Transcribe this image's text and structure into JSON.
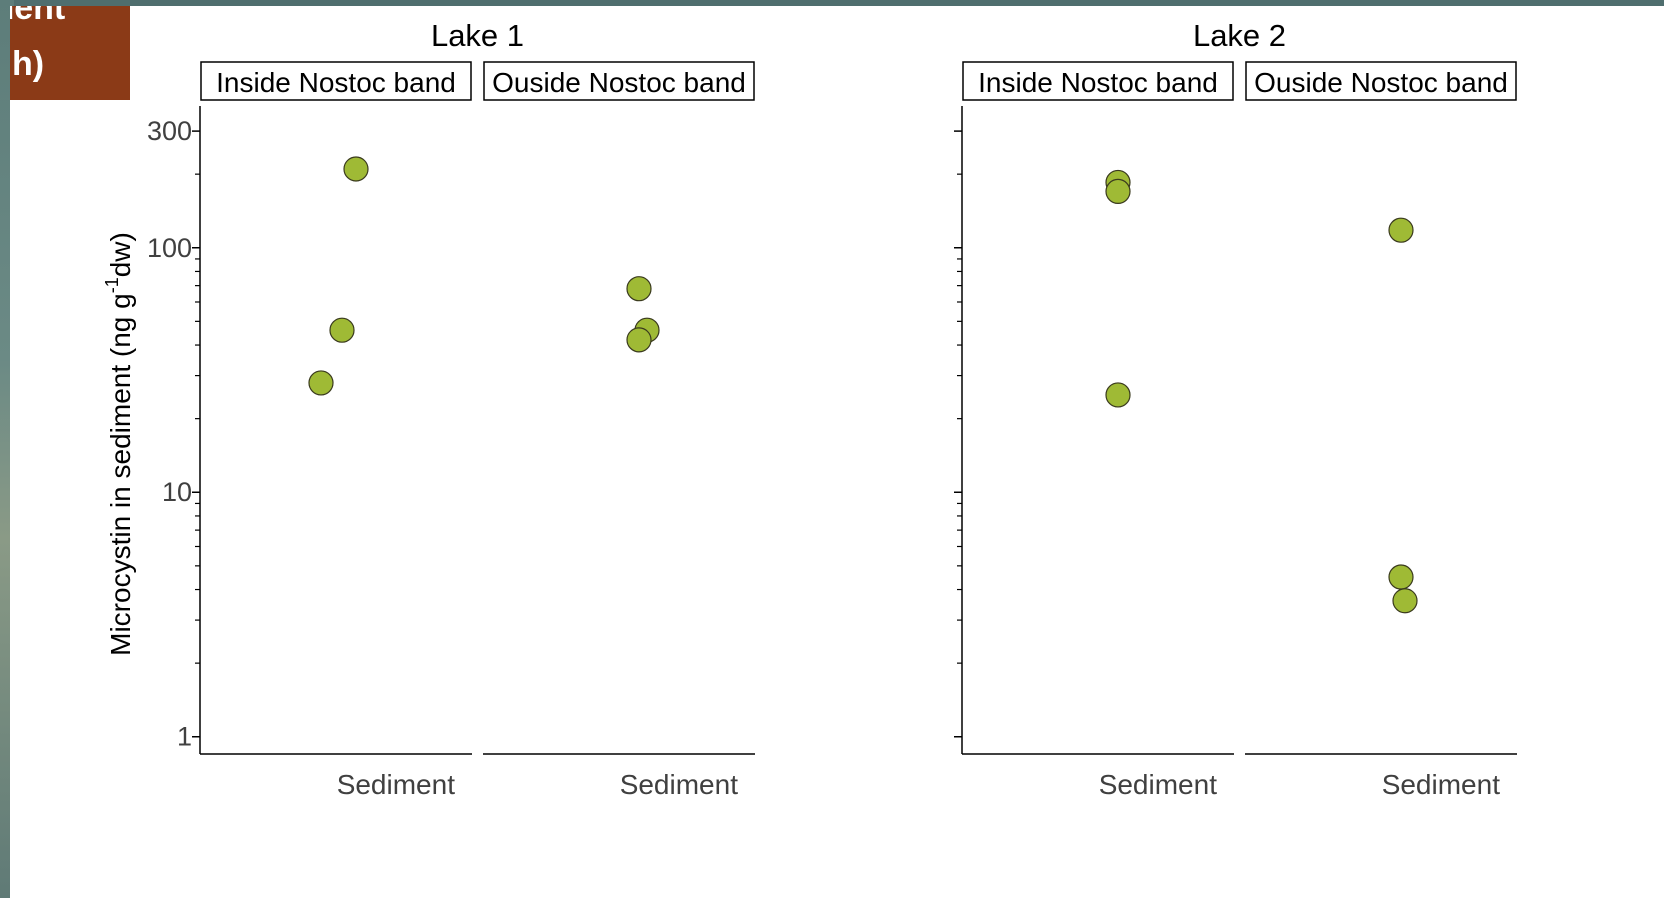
{
  "banner": {
    "line1": "ment",
    "line2": "h)"
  },
  "chart_data": {
    "type": "scatter",
    "ylabel_main": "Microcystin in sediment (ng g",
    "ylabel_sup": "-1",
    "ylabel_end": "dw)",
    "yscale": "log",
    "ylim": [
      0.85,
      380
    ],
    "yticks": [
      1,
      10,
      100,
      300
    ],
    "ytick_labels": [
      "1",
      "10",
      "100",
      "300"
    ],
    "point_color": "#9fba35",
    "lakes": [
      {
        "title": "Lake 1",
        "show_tick_labels": true,
        "panels": [
          {
            "strip": "Inside Nostoc band",
            "xlabel": "Sediment",
            "values": [
              210,
              46,
              28
            ]
          },
          {
            "strip": "Ouside Nostoc band",
            "xlabel": "Sediment",
            "values": [
              68,
              46,
              42
            ]
          }
        ]
      },
      {
        "title": "Lake 2",
        "show_tick_labels": false,
        "panels": [
          {
            "strip": "Inside Nostoc band",
            "xlabel": "Sediment",
            "values": [
              185,
              170,
              25
            ]
          },
          {
            "strip": "Ouside Nostoc band",
            "xlabel": "Sediment",
            "values": [
              118,
              4.5,
              3.6
            ]
          }
        ]
      }
    ]
  }
}
